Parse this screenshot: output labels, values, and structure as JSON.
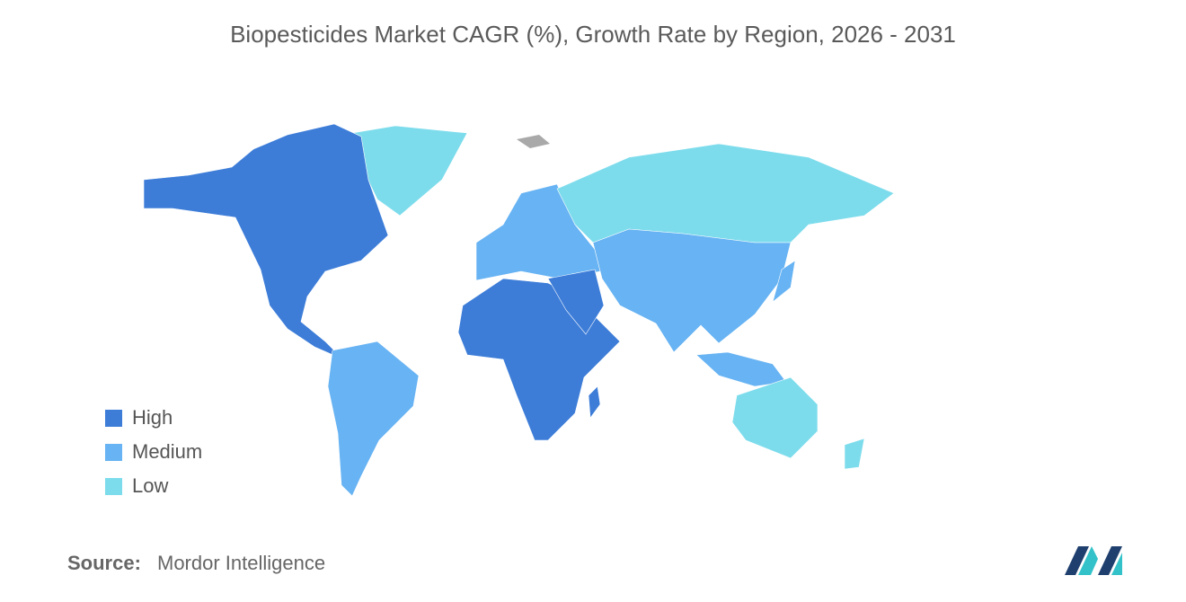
{
  "title": "Biopesticides Market CAGR (%), Growth Rate by Region, 2026 - 2031",
  "legend": {
    "items": [
      {
        "label": "High",
        "color": "#3d7dd8"
      },
      {
        "label": "Medium",
        "color": "#67b3f3"
      },
      {
        "label": "Low",
        "color": "#7ddcec"
      }
    ]
  },
  "source": {
    "label": "Source:",
    "text": "Mordor Intelligence"
  }
}
